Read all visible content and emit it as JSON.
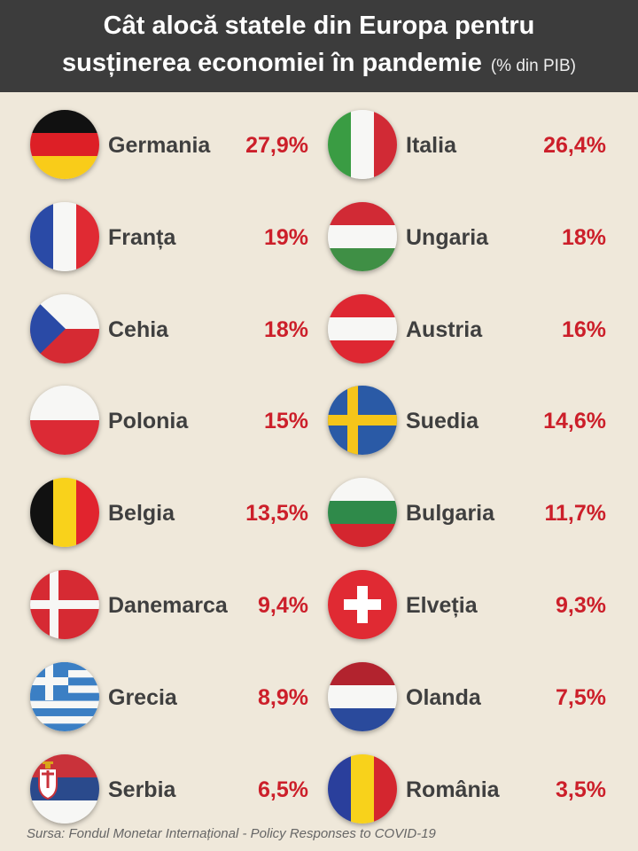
{
  "header": {
    "title_line1": "Cât alocă statele din Europa pentru",
    "title_line2": "susținerea economiei în pandemie",
    "subtitle": "(% din PIB)"
  },
  "chart_data": {
    "type": "table",
    "series": [
      {
        "country": "Germania",
        "value": 27.9,
        "label": "27,9%",
        "flag": "de-flag"
      },
      {
        "country": "Italia",
        "value": 26.4,
        "label": "26,4%",
        "flag": "it-flag"
      },
      {
        "country": "Franța",
        "value": 19,
        "label": "19%",
        "flag": "fr-flag"
      },
      {
        "country": "Ungaria",
        "value": 18,
        "label": "18%",
        "flag": "hu-flag"
      },
      {
        "country": "Cehia",
        "value": 18,
        "label": "18%",
        "flag": "cz-flag"
      },
      {
        "country": "Austria",
        "value": 16,
        "label": "16%",
        "flag": "at-flag"
      },
      {
        "country": "Polonia",
        "value": 15,
        "label": "15%",
        "flag": "pl-flag"
      },
      {
        "country": "Suedia",
        "value": 14.6,
        "label": "14,6%",
        "flag": "se-flag"
      },
      {
        "country": "Belgia",
        "value": 13.5,
        "label": "13,5%",
        "flag": "be-flag"
      },
      {
        "country": "Bulgaria",
        "value": 11.7,
        "label": "11,7%",
        "flag": "bg-flag"
      },
      {
        "country": "Danemarca",
        "value": 9.4,
        "label": "9,4%",
        "flag": "dk-flag"
      },
      {
        "country": "Elveția",
        "value": 9.3,
        "label": "9,3%",
        "flag": "ch-flag"
      },
      {
        "country": "Grecia",
        "value": 8.9,
        "label": "8,9%",
        "flag": "gr-flag"
      },
      {
        "country": "Olanda",
        "value": 7.5,
        "label": "7,5%",
        "flag": "nl-flag"
      },
      {
        "country": "Serbia",
        "value": 6.5,
        "label": "6,5%",
        "flag": "rs-flag"
      },
      {
        "country": "România",
        "value": 3.5,
        "label": "3,5%",
        "flag": "ro-flag"
      }
    ]
  },
  "colors": {
    "header_bg": "#3c3c3c",
    "page_bg": "#efe8da",
    "country_text": "#3f3f3f",
    "value_text": "#cc1f2a"
  },
  "source": "Sursa: Fondul Monetar Internațional - Policy Responses to COVID-19"
}
